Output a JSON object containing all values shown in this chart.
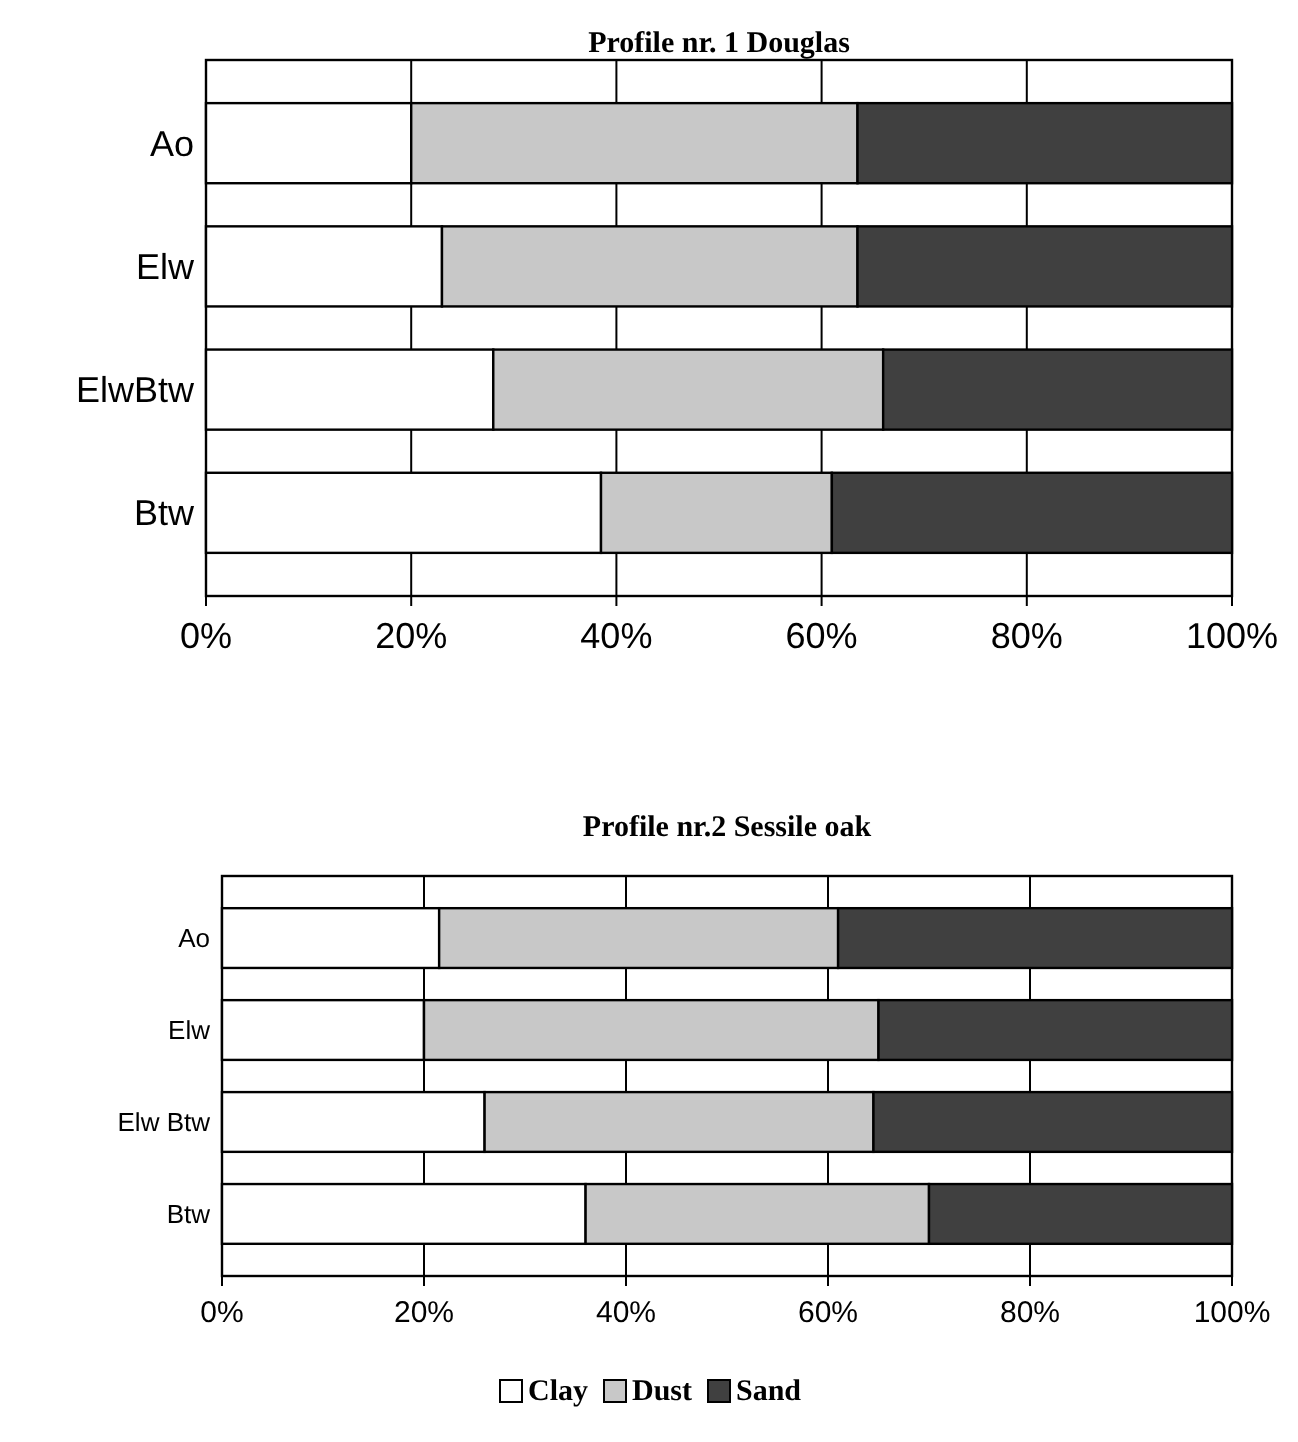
{
  "chart_data": [
    {
      "type": "bar",
      "orientation": "horizontal",
      "stacked": true,
      "title": "Profile nr. 1 Douglas",
      "categories": [
        "Ao",
        "Elw",
        "ElwBtw",
        "Btw"
      ],
      "xlim": [
        0,
        100
      ],
      "xticks": [
        {
          "value": 0,
          "label": "0%"
        },
        {
          "value": 20,
          "label": "20%"
        },
        {
          "value": 40,
          "label": "40%"
        },
        {
          "value": 60,
          "label": "60%"
        },
        {
          "value": 80,
          "label": "80%"
        },
        {
          "value": 100,
          "label": "100%"
        }
      ],
      "grid": "x",
      "legend": false,
      "series": [
        {
          "color": "#ffffff",
          "values": [
            20,
            23,
            28,
            38.5
          ]
        },
        {
          "color": "#c8c8c8",
          "values": [
            43.5,
            40.5,
            38,
            22.5
          ]
        },
        {
          "color": "#404040",
          "values": [
            36.5,
            36.5,
            34,
            39
          ]
        }
      ]
    },
    {
      "type": "bar",
      "orientation": "horizontal",
      "stacked": true,
      "title": "Profile nr.2 Sessile oak",
      "categories": [
        "Ao",
        "Elw",
        "Elw Btw",
        "Btw"
      ],
      "xlim": [
        0,
        100
      ],
      "xticks": [
        {
          "value": 0,
          "label": "0%"
        },
        {
          "value": 20,
          "label": "20%"
        },
        {
          "value": 40,
          "label": "40%"
        },
        {
          "value": 60,
          "label": "60%"
        },
        {
          "value": 80,
          "label": "80%"
        },
        {
          "value": 100,
          "label": "100%"
        }
      ],
      "grid": "x",
      "legend": "bottom",
      "series": [
        {
          "name": "Clay",
          "color": "#ffffff",
          "values": [
            21.5,
            20,
            26,
            36
          ]
        },
        {
          "name": "Dust",
          "color": "#c8c8c8",
          "values": [
            39.5,
            45,
            38.5,
            34
          ]
        },
        {
          "name": "Sand",
          "color": "#404040",
          "values": [
            39,
            35,
            35.5,
            30
          ]
        }
      ]
    }
  ]
}
